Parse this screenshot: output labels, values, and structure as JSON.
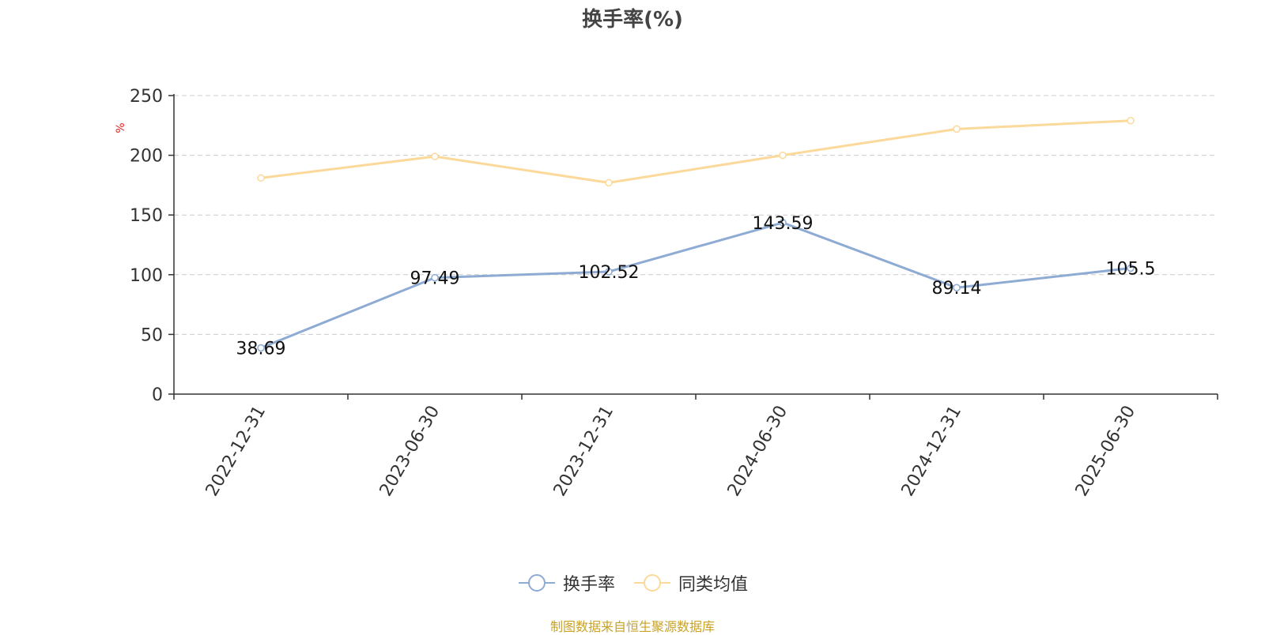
{
  "chart_data": {
    "type": "line",
    "title": "换手率(%)",
    "ylabel": "%",
    "categories": [
      "2022-12-31",
      "2023-06-30",
      "2023-12-31",
      "2024-06-30",
      "2024-12-31",
      "2025-06-30"
    ],
    "ylim": [
      0,
      250
    ],
    "yticks": [
      0,
      50,
      100,
      150,
      200,
      250
    ],
    "grid": true,
    "legend_position": "bottom",
    "series": [
      {
        "name": "换手率",
        "color": "#8eabd4",
        "labels": true,
        "values": [
          38.69,
          97.49,
          102.52,
          143.59,
          89.14,
          105.5
        ],
        "value_labels": [
          "38.69",
          "97.49",
          "102.52",
          "143.59",
          "89.14",
          "105.5"
        ]
      },
      {
        "name": "同类均值",
        "color": "#fbd99a",
        "labels": false,
        "values": [
          181,
          199,
          177,
          200,
          222,
          229
        ]
      }
    ]
  },
  "source_note": "制图数据来自恒生聚源数据库"
}
